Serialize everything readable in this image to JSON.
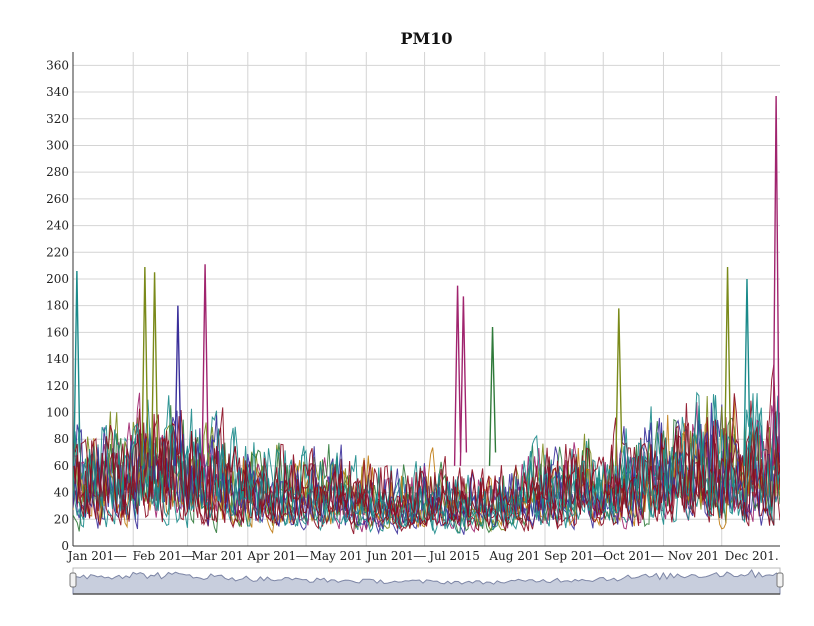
{
  "chart_data": {
    "type": "line",
    "title": "PM10",
    "xlabel": "",
    "ylabel": "",
    "ylim": [
      0,
      370
    ],
    "y_ticks": [
      0,
      20,
      40,
      60,
      80,
      100,
      120,
      140,
      160,
      180,
      200,
      220,
      240,
      260,
      280,
      300,
      320,
      340,
      360
    ],
    "x_tick_labels": [
      "Jan 2015",
      "Feb 2015",
      "Mar 2015",
      "Apr 2015",
      "May 2015",
      "Jun 2015",
      "Jul 2015",
      "Aug 2015",
      "Sep 2015",
      "Oct 2015",
      "Nov 2015",
      "Dec 2015"
    ],
    "x_tick_labels_shown": [
      "Jan 201―",
      "Feb 201―",
      "Mar 201",
      "Apr 201―",
      "May 201",
      "Jun 201―",
      "Jul 2015",
      "Aug 201",
      "Sep 201―",
      "Oct 201―",
      "Nov 201",
      "Dec 201."
    ],
    "x_range": [
      "2015-01-01",
      "2015-12-31"
    ],
    "grid": true,
    "legend": "none",
    "series_colors": [
      "#8b0a1f",
      "#1a8a8a",
      "#3a2f9a",
      "#7a8a1a",
      "#a0246e",
      "#2f7a3a",
      "#c07a10"
    ],
    "series_note_values": {
      "baseline_monthly_mean": [
        55,
        60,
        58,
        45,
        40,
        35,
        33,
        30,
        38,
        45,
        55,
        65
      ],
      "baseline_monthly_upper": [
        120,
        130,
        125,
        105,
        95,
        85,
        80,
        70,
        90,
        105,
        125,
        150
      ]
    },
    "spikes": [
      {
        "date": "2015-01-03",
        "value": 206,
        "color": "#1a8a8a"
      },
      {
        "date": "2015-02-07",
        "value": 209,
        "color": "#7a8a1a"
      },
      {
        "date": "2015-02-12",
        "value": 205,
        "color": "#7a8a1a"
      },
      {
        "date": "2015-02-24",
        "value": 180,
        "color": "#3a2f9a"
      },
      {
        "date": "2015-03-10",
        "value": 211,
        "color": "#a0246e"
      },
      {
        "date": "2015-07-18",
        "value": 195,
        "color": "#a0246e"
      },
      {
        "date": "2015-07-21",
        "value": 187,
        "color": "#a0246e"
      },
      {
        "date": "2015-08-05",
        "value": 164,
        "color": "#2f7a3a"
      },
      {
        "date": "2015-10-09",
        "value": 178,
        "color": "#7a8a1a"
      },
      {
        "date": "2015-12-04",
        "value": 209,
        "color": "#7a8a1a"
      },
      {
        "date": "2015-12-14",
        "value": 200,
        "color": "#1a8a8a"
      },
      {
        "date": "2015-12-29",
        "value": 337,
        "color": "#a0246e"
      }
    ],
    "range_selector": {
      "start": "2015-01-01",
      "end": "2015-12-31"
    }
  }
}
